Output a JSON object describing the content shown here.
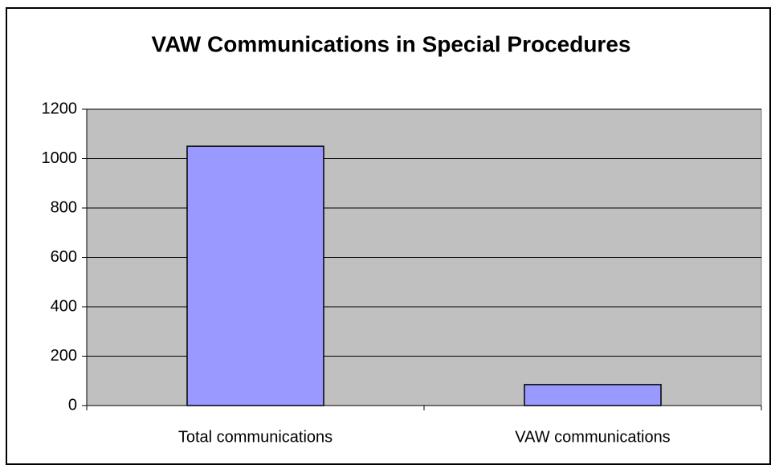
{
  "chart_data": {
    "type": "bar",
    "title": "VAW Communications in Special Procedures",
    "categories": [
      "Total communications",
      "VAW communications"
    ],
    "values": [
      1050,
      85
    ],
    "color": "#9999ff",
    "ylim": [
      0,
      1200
    ],
    "yticks": [
      0,
      200,
      400,
      600,
      800,
      1000,
      1200
    ],
    "grid": true
  }
}
